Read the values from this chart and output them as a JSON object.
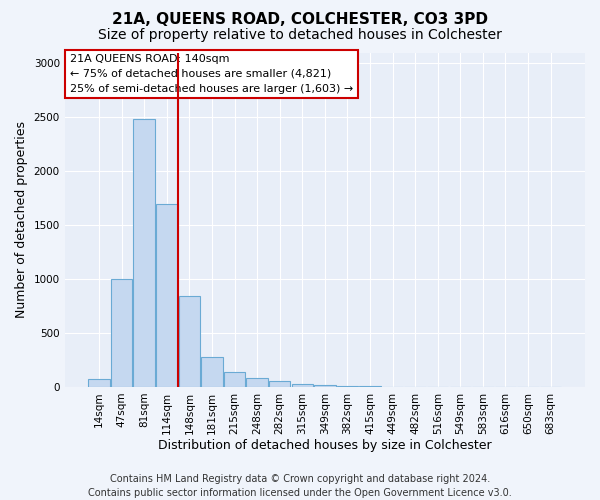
{
  "title": "21A, QUEENS ROAD, COLCHESTER, CO3 3PD",
  "subtitle": "Size of property relative to detached houses in Colchester",
  "xlabel": "Distribution of detached houses by size in Colchester",
  "ylabel": "Number of detached properties",
  "bar_labels": [
    "14sqm",
    "47sqm",
    "81sqm",
    "114sqm",
    "148sqm",
    "181sqm",
    "215sqm",
    "248sqm",
    "282sqm",
    "315sqm",
    "349sqm",
    "382sqm",
    "415sqm",
    "449sqm",
    "482sqm",
    "516sqm",
    "549sqm",
    "583sqm",
    "616sqm",
    "650sqm",
    "683sqm"
  ],
  "bar_values": [
    75,
    1000,
    2480,
    1700,
    840,
    280,
    140,
    80,
    55,
    30,
    20,
    10,
    5,
    3,
    2,
    1,
    0,
    0,
    0,
    0,
    1
  ],
  "bar_color": "#c5d8f0",
  "bar_edge_color": "#6aaad4",
  "bar_width": 0.95,
  "vline_color": "#cc0000",
  "vline_xindex": 3.5,
  "ylim": [
    0,
    3100
  ],
  "yticks": [
    0,
    500,
    1000,
    1500,
    2000,
    2500,
    3000
  ],
  "annotation_text": "21A QUEENS ROAD: 140sqm\n← 75% of detached houses are smaller (4,821)\n25% of semi-detached houses are larger (1,603) →",
  "annotation_box_color": "#ffffff",
  "annotation_box_edge": "#cc0000",
  "footer": "Contains HM Land Registry data © Crown copyright and database right 2024.\nContains public sector information licensed under the Open Government Licence v3.0.",
  "bg_color": "#f0f4fb",
  "plot_bg_color": "#e8eef8",
  "grid_color": "#ffffff",
  "title_fontsize": 11,
  "subtitle_fontsize": 10,
  "axis_label_fontsize": 9,
  "tick_fontsize": 7.5,
  "annotation_fontsize": 8,
  "footer_fontsize": 7
}
